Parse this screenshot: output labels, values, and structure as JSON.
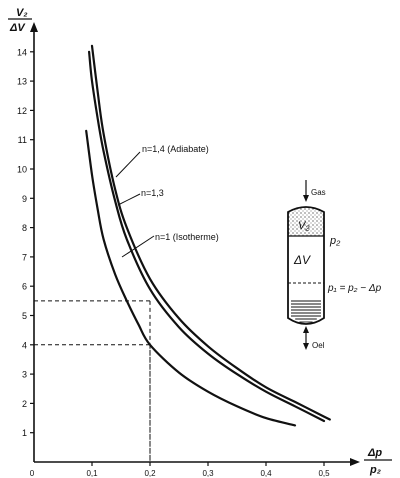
{
  "chart_data": {
    "type": "line",
    "title": "",
    "ylabel_num": "V₂",
    "ylabel_den": "ΔV",
    "xlabel_num": "Δp",
    "xlabel_den": "p₂",
    "xlim": [
      0,
      0.55
    ],
    "ylim": [
      0,
      14.5
    ],
    "xticks": [
      0,
      0.1,
      0.2,
      0.3,
      0.4,
      0.5
    ],
    "xtick_labels": [
      "0",
      "0,1",
      "0,2",
      "0,3",
      "0,4",
      "0,5"
    ],
    "yticks": [
      1,
      2,
      3,
      4,
      5,
      6,
      7,
      8,
      9,
      10,
      11,
      12,
      13,
      14
    ],
    "ytick_labels": [
      "1",
      "2",
      "3",
      "4",
      "5",
      "6",
      "7",
      "8",
      "9",
      "10",
      "11",
      "12",
      "13",
      "14"
    ],
    "grid": false,
    "series": [
      {
        "name": "n=1,4 (Adiabate)",
        "x": [
          0.1,
          0.11,
          0.12,
          0.14,
          0.16,
          0.2,
          0.25,
          0.3,
          0.35,
          0.4,
          0.45,
          0.5,
          0.51
        ],
        "y": [
          14.2,
          12.6,
          11.2,
          9.3,
          8.0,
          6.25,
          4.9,
          3.95,
          3.2,
          2.55,
          2.05,
          1.55,
          1.45
        ]
      },
      {
        "name": "n=1,3",
        "x": [
          0.095,
          0.1,
          0.11,
          0.12,
          0.14,
          0.16,
          0.2,
          0.25,
          0.3,
          0.35,
          0.4,
          0.45,
          0.5
        ],
        "y": [
          14.0,
          13.0,
          11.7,
          10.6,
          8.9,
          7.6,
          5.9,
          4.6,
          3.7,
          3.0,
          2.4,
          1.9,
          1.4
        ]
      },
      {
        "name": "n=1 (Isotherme)",
        "x": [
          0.09,
          0.1,
          0.11,
          0.12,
          0.14,
          0.16,
          0.18,
          0.2,
          0.25,
          0.3,
          0.35,
          0.4,
          0.45
        ],
        "y": [
          11.3,
          9.8,
          8.6,
          7.6,
          6.4,
          5.5,
          4.7,
          4.0,
          3.05,
          2.4,
          1.9,
          1.5,
          1.25
        ]
      }
    ],
    "reference_lines": [
      {
        "x": 0.2,
        "y": 4.0
      },
      {
        "x": 0.2,
        "y": 5.5
      }
    ],
    "vessel": {
      "gas_label": "Gas",
      "v2_label": "V₂",
      "p2_label": "p₂",
      "dv_label": "ΔV",
      "p1_label": "p₁ = p₂ − Δp",
      "oil_label": "Oel"
    }
  }
}
